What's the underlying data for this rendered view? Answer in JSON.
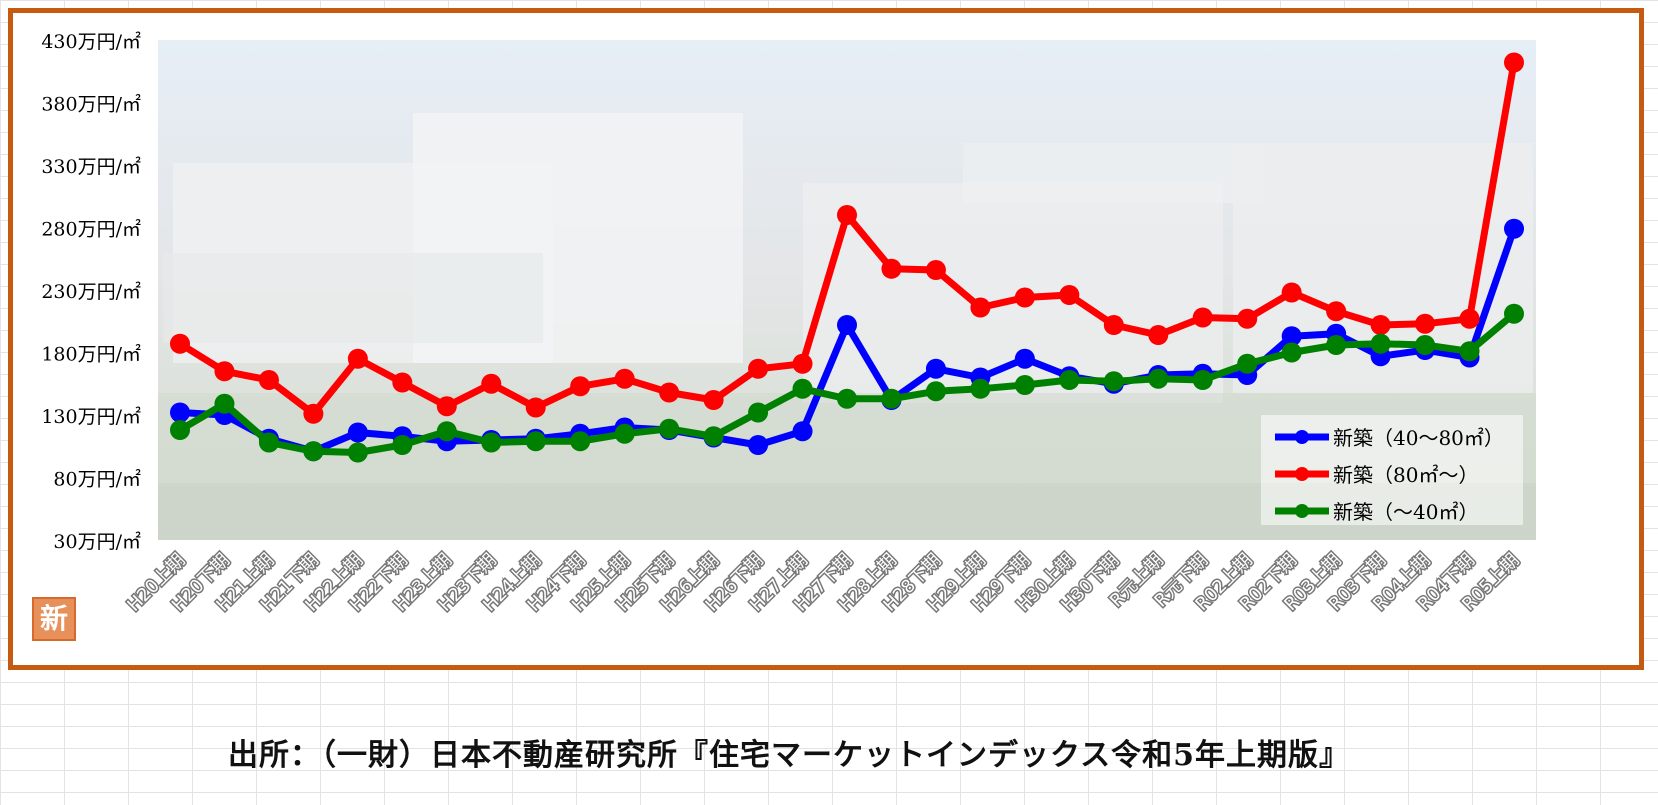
{
  "badge_text": "新",
  "source_note": "出所：（一財）日本不動産研究所『住宅マーケットインデックス令和5年上期版』",
  "chart_data": {
    "type": "line",
    "title": "",
    "xlabel": "",
    "ylabel": "",
    "ylim": [
      30,
      430
    ],
    "y_ticks": [
      "30万円/㎡",
      "80万円/㎡",
      "130万円/㎡",
      "180万円/㎡",
      "230万円/㎡",
      "280万円/㎡",
      "330万円/㎡",
      "380万円/㎡",
      "430万円/㎡"
    ],
    "y_tick_values": [
      30,
      80,
      130,
      180,
      230,
      280,
      330,
      380,
      430
    ],
    "grid": false,
    "legend_position": "bottom-right",
    "categories": [
      "H20上期",
      "H20下期",
      "H21上期",
      "H21下期",
      "H22上期",
      "H22下期",
      "H23上期",
      "H23下期",
      "H24上期",
      "H24下期",
      "H25上期",
      "H25下期",
      "H26上期",
      "H26下期",
      "H27上期",
      "H27下期",
      "H28上期",
      "H28下期",
      "H29上期",
      "H29下期",
      "H30上期",
      "H30下期",
      "R元上期",
      "R元下期",
      "R02上期",
      "R02下期",
      "R03上期",
      "R03下期",
      "R04上期",
      "R04下期",
      "R05上期"
    ],
    "series": [
      {
        "name": "新築（40～80㎡）",
        "color": "#0000ff",
        "values": [
          132,
          130,
          111,
          101,
          116,
          113,
          109,
          110,
          111,
          115,
          120,
          118,
          112,
          106,
          117,
          202,
          142,
          167,
          160,
          175,
          161,
          155,
          162,
          163,
          162,
          193,
          195,
          177,
          182,
          176,
          279
        ]
      },
      {
        "name": "新築（80㎡～）",
        "color": "#ff0000",
        "values": [
          187,
          165,
          158,
          131,
          175,
          156,
          137,
          155,
          136,
          153,
          159,
          148,
          142,
          167,
          171,
          290,
          247,
          246,
          216,
          224,
          226,
          202,
          194,
          208,
          207,
          228,
          213,
          202,
          203,
          207,
          412
        ]
      },
      {
        "name": "新築（～40㎡）",
        "color": "#008000",
        "values": [
          118,
          139,
          108,
          101,
          100,
          106,
          117,
          108,
          109,
          109,
          115,
          119,
          113,
          132,
          151,
          143,
          143,
          149,
          151,
          154,
          158,
          157,
          159,
          158,
          171,
          180,
          186,
          187,
          186,
          181,
          211
        ]
      }
    ]
  }
}
